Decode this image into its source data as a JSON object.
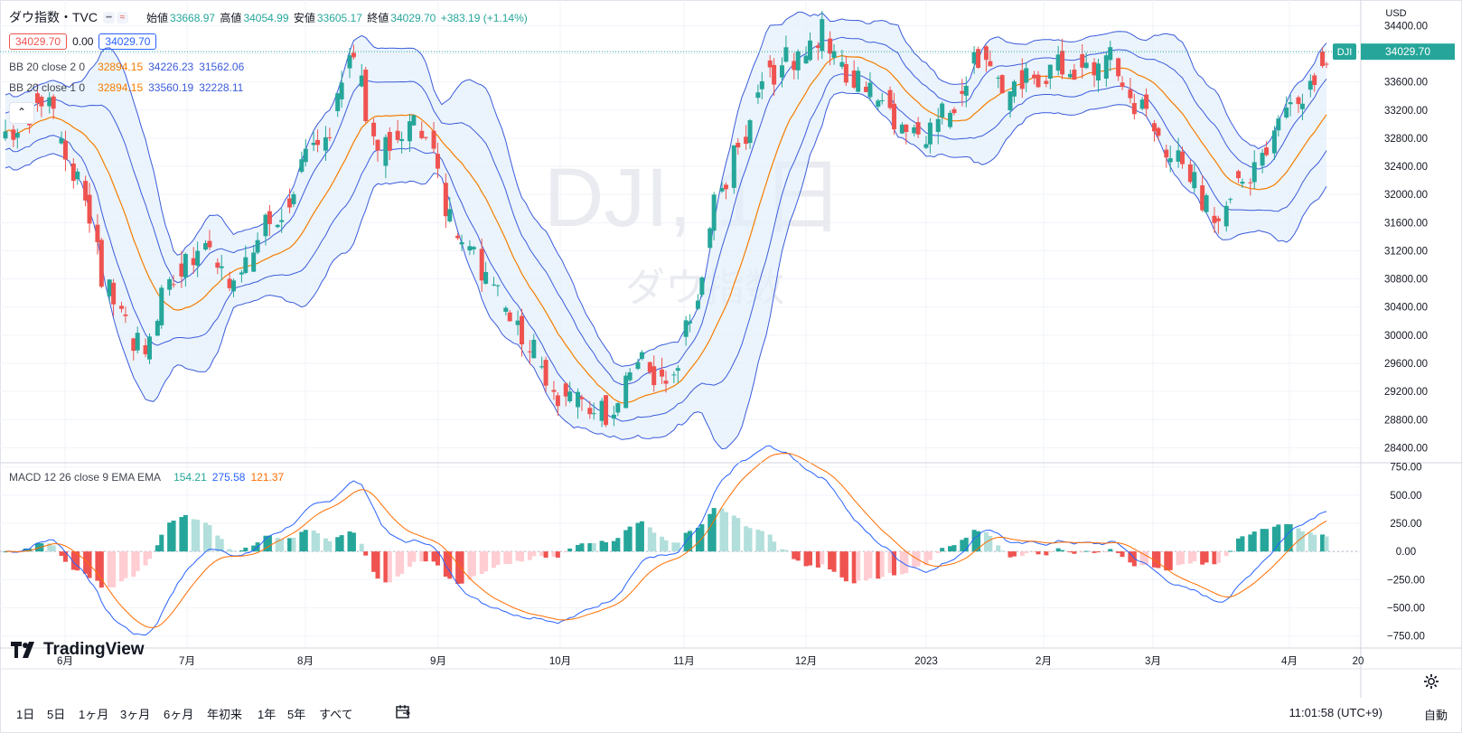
{
  "header": {
    "symbol": "ダウ指数・TVC",
    "ohlc": {
      "open_label": "始値",
      "open": "33668.97",
      "high_label": "高値",
      "high": "34054.99",
      "low_label": "安値",
      "low": "33605.17",
      "close_label": "終値",
      "close": "34029.70",
      "change": "+383.19 (+1.14%)"
    },
    "sell_price": "34029.70",
    "spread": "0.00",
    "buy_price": "34029.70"
  },
  "indicators": {
    "bb2": {
      "label": "BB 20 close 2 0",
      "basis": "32894.15",
      "upper": "34226.23",
      "lower": "31562.06"
    },
    "bb1": {
      "label": "BB 20 close 1 0",
      "basis": "32894.15",
      "upper": "33560.19",
      "lower": "32228.11"
    },
    "macd": {
      "label": "MACD 12 26 close 9 EMA EMA",
      "hist": "154.21",
      "macd": "275.58",
      "signal": "121.37"
    }
  },
  "watermark": {
    "ticker": "DJI, 1日",
    "name": "ダウ指数"
  },
  "price_axis": {
    "currency": "USD",
    "ticks": [
      "34400.00",
      "34000.00",
      "33600.00",
      "33200.00",
      "32800.00",
      "32400.00",
      "32000.00",
      "31600.00",
      "31200.00",
      "30800.00",
      "30400.00",
      "30000.00",
      "29600.00",
      "29200.00",
      "28800.00",
      "28400.00"
    ],
    "last_tag": "DJI",
    "last_value": "34029.70"
  },
  "macd_axis": {
    "ticks": [
      "750.00",
      "500.00",
      "250.00",
      "0.00",
      "−250.00",
      "−500.00",
      "−750.00"
    ]
  },
  "time_axis": {
    "labels": [
      "6月",
      "7月",
      "8月",
      "9月",
      "10月",
      "11月",
      "12月",
      "2023",
      "2月",
      "3月",
      "4月",
      "20"
    ]
  },
  "bottom": {
    "timeframes": [
      "1日",
      "5日",
      "1ヶ月",
      "3ヶ月",
      "6ヶ月",
      "年初来",
      "1年",
      "5年",
      "すべて"
    ],
    "clock": "11:01:58 (UTC+9)",
    "auto": "自動"
  },
  "logo": "TradingView",
  "colors": {
    "up": "#26a69a",
    "down": "#ef5350",
    "band": "#3b5bdb",
    "basis": "#f57c00",
    "macd": "#2962ff",
    "signal": "#ff6d00",
    "hist_up": "#26a69a",
    "hist_up_light": "#b2dfdb",
    "hist_down": "#ef5350",
    "hist_down_light": "#ffcdd2"
  },
  "chart_data": {
    "type": "candlestick",
    "interval": "1D",
    "period": "2022-05 to 2023-04",
    "ylim": [
      28200,
      34700
    ],
    "price_series_monthly": [
      {
        "month": "6月",
        "close": 32990
      },
      {
        "month": "7月",
        "close": 30775
      },
      {
        "month": "8月",
        "close": 33000
      },
      {
        "month": "9月",
        "close": 31510
      },
      {
        "month": "10月",
        "close": 28725
      },
      {
        "month": "11月",
        "close": 32730
      },
      {
        "month": "12月",
        "close": 34390
      },
      {
        "month": "2023",
        "close": 33147
      },
      {
        "month": "2月",
        "close": 34086
      },
      {
        "month": "3月",
        "close": 32657
      },
      {
        "month": "4月",
        "close": 33274
      }
    ],
    "macd_range": [
      -850,
      780
    ]
  }
}
